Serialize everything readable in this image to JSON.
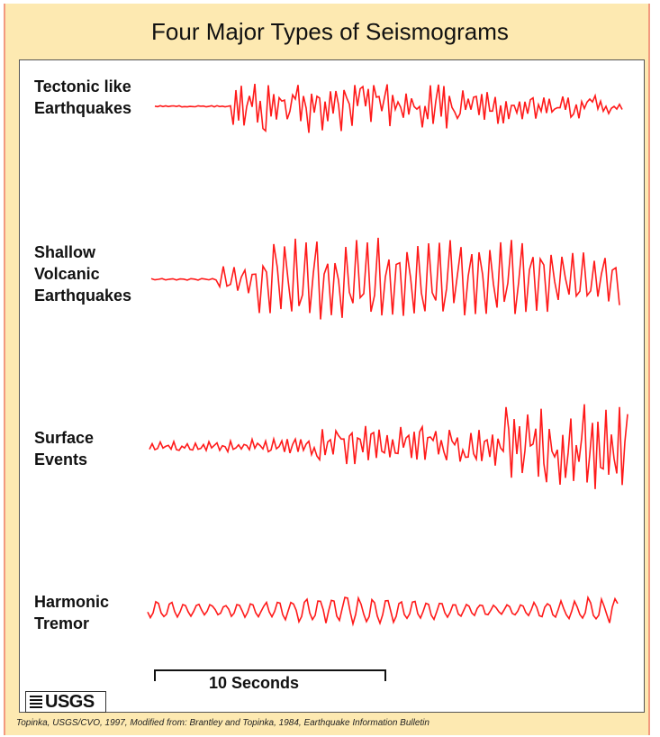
{
  "title": "Four Major Types of Seismograms",
  "rows": [
    {
      "label": "Tectonic like\nEarthquakes"
    },
    {
      "label": "Shallow\nVolcanic\nEarthquakes"
    },
    {
      "label": "Surface\nEvents"
    },
    {
      "label": "Harmonic\nTremor"
    }
  ],
  "scale_bar": {
    "label": "10 Seconds"
  },
  "logo_text": "USGS",
  "credit": "Topinka, USGS/CVO, 1997, Modified from: Brantley and Topinka, 1984, Earthquake Information Bulletin",
  "colors": {
    "trace": "#ff1a1a",
    "frame": "#fde9b1",
    "frame_border": "#f39a7f"
  }
}
